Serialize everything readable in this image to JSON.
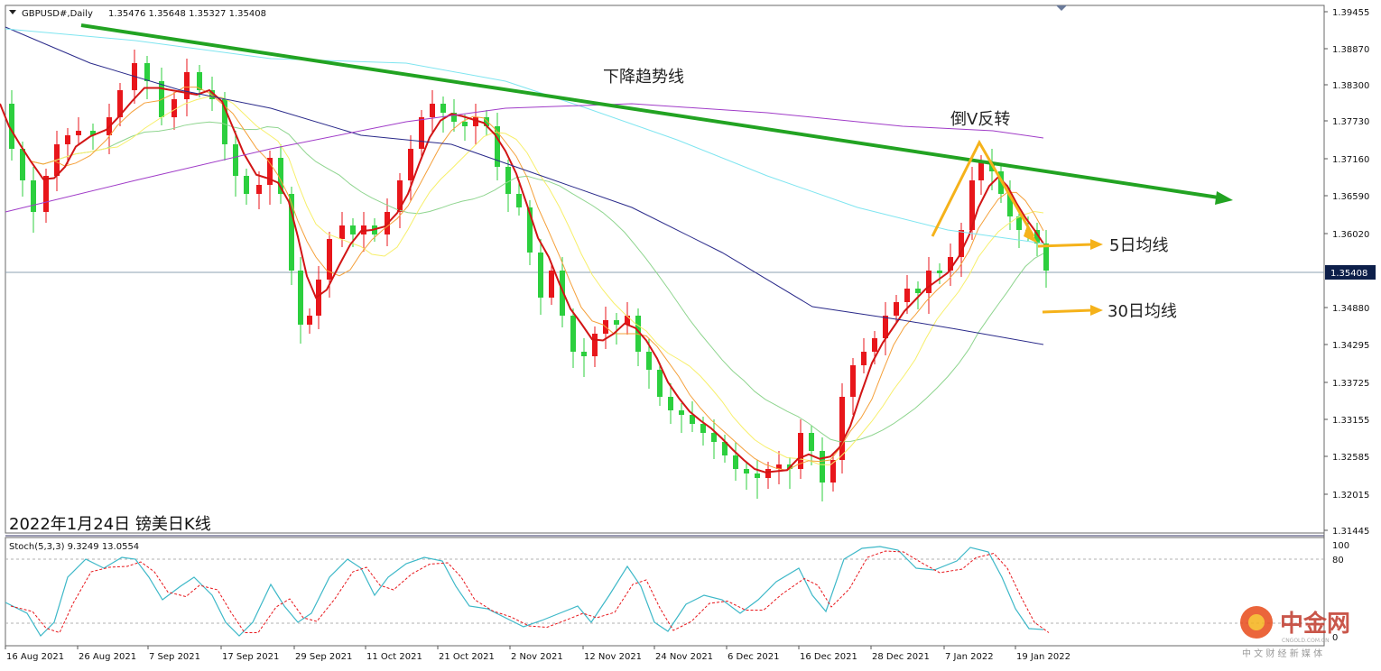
{
  "header": {
    "symbol": "GBPUSD#,Daily",
    "ohlc": "1.35476 1.35648 1.35327 1.35408"
  },
  "price_axis": {
    "ticks": [
      "1.39455",
      "1.38870",
      "1.38300",
      "1.37730",
      "1.37160",
      "1.36590",
      "1.36020",
      "1.35408",
      "1.34880",
      "1.34295",
      "1.33725",
      "1.33155",
      "1.32585",
      "1.32015",
      "1.31445"
    ],
    "current": "1.35408"
  },
  "stoch_axis": {
    "ticks": [
      "100",
      "80",
      "0"
    ]
  },
  "date_axis": [
    "16 Aug 2021",
    "26 Aug 2021",
    "7 Sep 2021",
    "17 Sep 2021",
    "29 Sep 2021",
    "11 Oct 2021",
    "21 Oct 2021",
    "2 Nov 2021",
    "12 Nov 2021",
    "24 Nov 2021",
    "6 Dec 2021",
    "16 Dec 2021",
    "28 Dec 2021",
    "7 Jan 2022",
    "19 Jan 2022"
  ],
  "stoch_header": "Stoch(5,3,3) 9.3249 13.0554",
  "annotations": {
    "trendline": "下降趋势线",
    "reversal": "倒V反转",
    "ma5": "5日均线",
    "ma30": "30日均线",
    "caption": "2022年1月24日 镑美日K线"
  },
  "watermark": {
    "brand": "中金网",
    "sub": "中 文 财 经 新 媒 体",
    "domain": "CNGOLD.COM.CN"
  },
  "colors": {
    "bull": "#e8161b",
    "bear": "#2ccf3e",
    "trend": "#22a322",
    "arrow": "#f5b21a",
    "stochK": "#3db8c8",
    "stochD": "#e8161b"
  }
}
